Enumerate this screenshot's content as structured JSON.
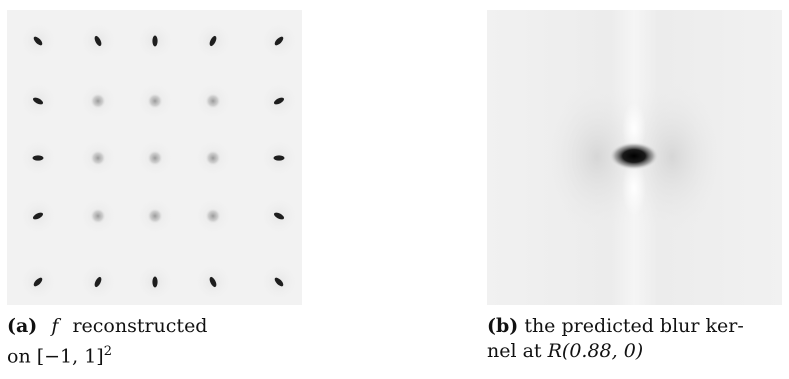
{
  "figure": {
    "panel_a": {
      "tag": "(a)",
      "caption_symbol": "f",
      "caption_text": "reconstructed",
      "caption_line2_prefix": "on ",
      "caption_domain": "[−1, 1]",
      "caption_exponent": "2",
      "grid": {
        "rows": 5,
        "cols": 5
      },
      "background_color": "#f2f2f2"
    },
    "panel_b": {
      "tag": "(b)",
      "caption_line1": "the predicted blur ker-",
      "caption_line2_prefix": "nel at ",
      "caption_point": "R(0.88, 0)",
      "background_color": "#f0f0f0"
    }
  }
}
